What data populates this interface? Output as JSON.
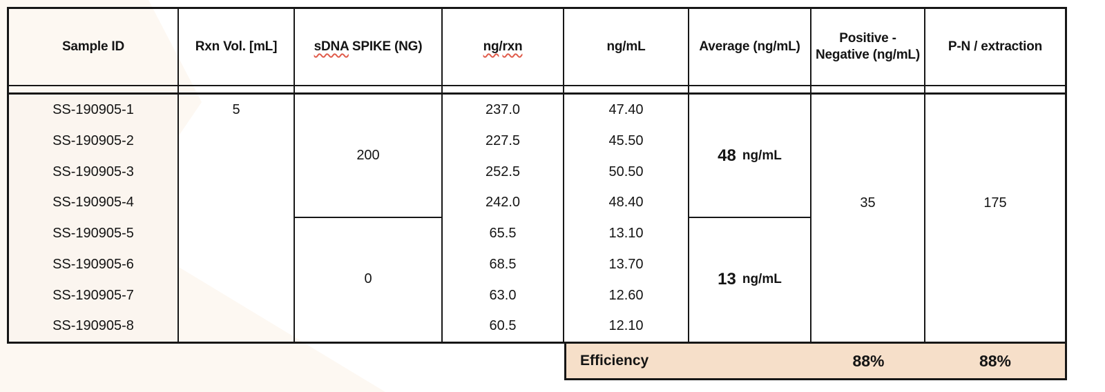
{
  "colors": {
    "border": "#161616",
    "sample_column_fill": "#fbf5ef",
    "footer_fill": "#f6dfc9",
    "background_accent": "#fdf8f2",
    "spellcheck_squiggle": "#e05c4b"
  },
  "table": {
    "header": {
      "sample_id": "Sample ID",
      "rxn_vol": "Rxn Vol. [mL]",
      "sdna_spike_word": "sDNA",
      "sdna_spike_rest": " SPIKE (NG)",
      "ng_rxn_ng": "ng",
      "ng_rxn_slash": "/",
      "ng_rxn_rxn": "rxn",
      "ng_ml": "ng/mL",
      "average": "Average (ng/mL)",
      "pos_neg_line1": "Positive -",
      "pos_neg_line2": "Negative (ng/mL)",
      "pn_extraction": "P-N / extraction"
    },
    "body": {
      "sample_ids": [
        "SS-190905-1",
        "SS-190905-2",
        "SS-190905-3",
        "SS-190905-4",
        "SS-190905-5",
        "SS-190905-6",
        "SS-190905-7",
        "SS-190905-8"
      ],
      "rxn_vol": "5",
      "spike_high": "200",
      "spike_low": "0",
      "ng_rxn": [
        "237.0",
        "227.5",
        "252.5",
        "242.0",
        "65.5",
        "68.5",
        "63.0",
        "60.5"
      ],
      "ng_ml": [
        "47.40",
        "45.50",
        "50.50",
        "48.40",
        "13.10",
        "13.70",
        "12.60",
        "12.10"
      ],
      "avg_high_value": "48",
      "avg_high_unit": "ng/mL",
      "avg_low_value": "13",
      "avg_low_unit": "ng/mL",
      "pos_neg": "35",
      "pn_extraction": "175"
    },
    "footer": {
      "label": "Efficiency",
      "pos_neg_efficiency": "88%",
      "pn_extraction_efficiency": "88%"
    }
  }
}
